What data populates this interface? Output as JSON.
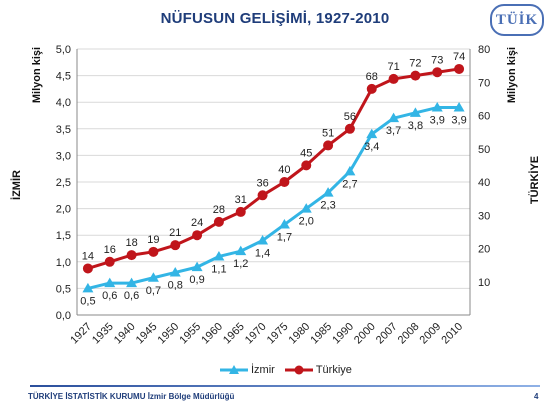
{
  "slide": {
    "title": "NÜFUSUN GELİŞİMİ, 1927-2010",
    "logo_text": "TÜİK",
    "footer": "TÜRKİYE İSTATİSTİK KURUMU İzmir Bölge Müdürlüğü",
    "page_number": "4"
  },
  "chart_data": {
    "type": "line",
    "categories": [
      "1927",
      "1935",
      "1940",
      "1945",
      "1950",
      "1955",
      "1960",
      "1965",
      "1970",
      "1975",
      "1980",
      "1985",
      "1990",
      "2000",
      "2007",
      "2008",
      "2009",
      "2010"
    ],
    "y_left": {
      "label": "Milyon kişi",
      "side_label": "İZMİR",
      "min": 0,
      "max": 5.0,
      "step": 0.5,
      "ticks": [
        "0,0",
        "0,5",
        "1,0",
        "1,5",
        "2,0",
        "2,5",
        "3,0",
        "3,5",
        "4,0",
        "4,5",
        "5,0"
      ]
    },
    "y_right": {
      "label": "Milyon kişi",
      "side_label": "TÜRKİYE",
      "min": 0,
      "max": 80,
      "step": 10,
      "ticks": [
        "10",
        "20",
        "30",
        "40",
        "50",
        "60",
        "70",
        "80"
      ]
    },
    "series": [
      {
        "name": "İzmir",
        "axis": "left",
        "color": "#33b5e5",
        "marker": "triangle",
        "values": [
          0.5,
          0.6,
          0.6,
          0.7,
          0.8,
          0.9,
          1.1,
          1.2,
          1.4,
          1.7,
          2.0,
          2.3,
          2.7,
          3.4,
          3.7,
          3.8,
          3.9,
          3.9
        ],
        "labels": [
          "0,5",
          "0,6",
          "0,6",
          "0,7",
          "0,8",
          "0,9",
          "1,1",
          "1,2",
          "1,4",
          "1,7",
          "2,0",
          "2,3",
          "2,7",
          "3,4",
          "3,7",
          "3,8",
          "3,9",
          "3,9"
        ]
      },
      {
        "name": "Türkiye",
        "axis": "right",
        "color": "#c0151b",
        "marker": "circle",
        "values": [
          14,
          16,
          18,
          19,
          21,
          24,
          28,
          31,
          36,
          40,
          45,
          51,
          56,
          68,
          71,
          72,
          73,
          74
        ],
        "labels": [
          "14",
          "16",
          "18",
          "19",
          "21",
          "24",
          "28",
          "31",
          "36",
          "40",
          "45",
          "51",
          "56",
          "68",
          "71",
          "72",
          "73",
          "74"
        ]
      }
    ],
    "grid": true,
    "legend": "bottom"
  }
}
